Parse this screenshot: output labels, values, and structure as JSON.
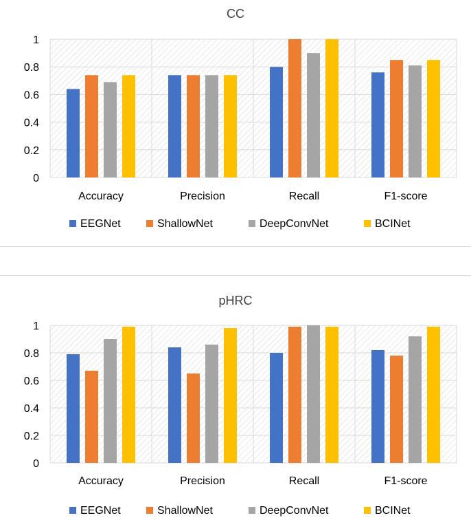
{
  "chart_data": [
    {
      "type": "bar",
      "title": "CC",
      "categories": [
        "Accuracy",
        "Precision",
        "Recall",
        "F1-score"
      ],
      "ylim": [
        0,
        1
      ],
      "yticks": [
        "0",
        "0.2",
        "0.4",
        "0.6",
        "0.8",
        "1"
      ],
      "grid": true,
      "legend_position": "bottom",
      "series": [
        {
          "name": "EEGNet",
          "color": "#4472c4",
          "values": [
            0.64,
            0.74,
            0.8,
            0.76
          ]
        },
        {
          "name": "ShallowNet",
          "color": "#ed7d31",
          "values": [
            0.74,
            0.74,
            1.0,
            0.85
          ]
        },
        {
          "name": "DeepConvNet",
          "color": "#a5a5a5",
          "values": [
            0.69,
            0.74,
            0.9,
            0.81
          ]
        },
        {
          "name": "BCINet",
          "color": "#ffc000",
          "values": [
            0.74,
            0.74,
            1.0,
            0.85
          ]
        }
      ]
    },
    {
      "type": "bar",
      "title": "pHRC",
      "categories": [
        "Accuracy",
        "Precision",
        "Recall",
        "F1-score"
      ],
      "ylim": [
        0,
        1
      ],
      "yticks": [
        "0",
        "0.2",
        "0.4",
        "0.6",
        "0.8",
        "1"
      ],
      "grid": true,
      "legend_position": "bottom",
      "series": [
        {
          "name": "EEGNet",
          "color": "#4472c4",
          "values": [
            0.79,
            0.84,
            0.8,
            0.82
          ]
        },
        {
          "name": "ShallowNet",
          "color": "#ed7d31",
          "values": [
            0.67,
            0.65,
            0.99,
            0.78
          ]
        },
        {
          "name": "DeepConvNet",
          "color": "#a5a5a5",
          "values": [
            0.9,
            0.86,
            1.0,
            0.92
          ]
        },
        {
          "name": "BCINet",
          "color": "#ffc000",
          "values": [
            0.99,
            0.98,
            0.99,
            0.99
          ]
        }
      ]
    }
  ]
}
